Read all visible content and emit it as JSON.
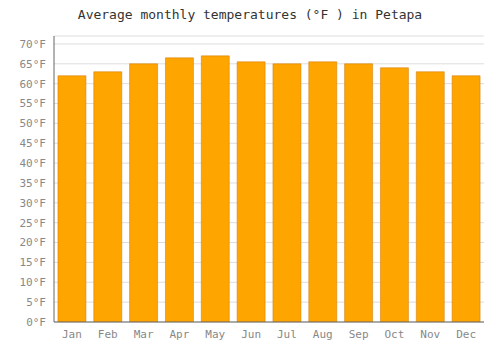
{
  "chart_data": {
    "type": "bar",
    "title": "Average monthly temperatures (°F ) in Petapa",
    "categories": [
      "Jan",
      "Feb",
      "Mar",
      "Apr",
      "May",
      "Jun",
      "Jul",
      "Aug",
      "Sep",
      "Oct",
      "Nov",
      "Dec"
    ],
    "values": [
      62,
      63,
      65,
      66.5,
      67,
      65.5,
      65,
      65.5,
      65,
      64,
      63,
      62
    ],
    "color": "#FFA500",
    "ylim": [
      0,
      72
    ],
    "yticks": [
      {
        "value": 0,
        "label": "0°F"
      },
      {
        "value": 5,
        "label": "5°F"
      },
      {
        "value": 10,
        "label": "10°F"
      },
      {
        "value": 15,
        "label": "15°F"
      },
      {
        "value": 20,
        "label": "20°F"
      },
      {
        "value": 25,
        "label": "25°F"
      },
      {
        "value": 30,
        "label": "30°F"
      },
      {
        "value": 35,
        "label": "35°F"
      },
      {
        "value": 40,
        "label": "40°F"
      },
      {
        "value": 45,
        "label": "45°F"
      },
      {
        "value": 50,
        "label": "50°F"
      },
      {
        "value": 55,
        "label": "55°F"
      },
      {
        "value": 60,
        "label": "60°F"
      },
      {
        "value": 65,
        "label": "65°F"
      },
      {
        "value": 70,
        "label": "70°F"
      }
    ],
    "grid": true
  }
}
